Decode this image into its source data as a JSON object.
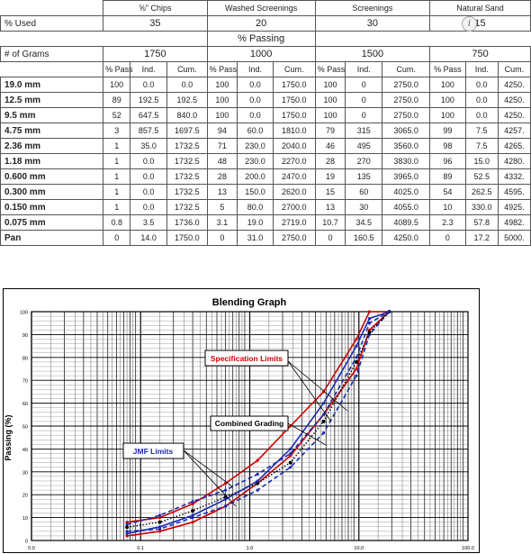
{
  "table": {
    "columns": [
      {
        "name": "⅝\" Chips",
        "used": "35",
        "grams": "1750"
      },
      {
        "name": "Washed Screenings",
        "used": "20",
        "grams": "1000"
      },
      {
        "name": "Screenings",
        "used": "30",
        "grams": "1500"
      },
      {
        "name": "Natural Sand",
        "used": "15",
        "grams": "750"
      }
    ],
    "used_label": "% Used",
    "passing_label": "% Passing",
    "grams_label": "# of Grams",
    "sub_headers": [
      "% Pass",
      "Ind.",
      "Cum."
    ],
    "rows": [
      {
        "size": "19.0 mm",
        "cells": [
          "100",
          "0.0",
          "0.0",
          "100",
          "0.0",
          "1750.0",
          "100",
          "0",
          "2750.0",
          "100",
          "0.0",
          "4250."
        ]
      },
      {
        "size": "12.5 mm",
        "cells": [
          "89",
          "192.5",
          "192.5",
          "100",
          "0.0",
          "1750.0",
          "100",
          "0",
          "2750.0",
          "100",
          "0.0",
          "4250."
        ]
      },
      {
        "size": "9.5 mm",
        "cells": [
          "52",
          "647.5",
          "840.0",
          "100",
          "0.0",
          "1750.0",
          "100",
          "0",
          "2750.0",
          "100",
          "0.0",
          "4250."
        ]
      },
      {
        "size": "4.75 mm",
        "cells": [
          "3",
          "857.5",
          "1697.5",
          "94",
          "60.0",
          "1810.0",
          "79",
          "315",
          "3065.0",
          "99",
          "7.5",
          "4257."
        ]
      },
      {
        "size": "2.36 mm",
        "cells": [
          "1",
          "35.0",
          "1732.5",
          "71",
          "230.0",
          "2040.0",
          "46",
          "495",
          "3560.0",
          "98",
          "7.5",
          "4265."
        ]
      },
      {
        "size": "1.18 mm",
        "cells": [
          "1",
          "0.0",
          "1732.5",
          "48",
          "230.0",
          "2270.0",
          "28",
          "270",
          "3830.0",
          "96",
          "15.0",
          "4280."
        ]
      },
      {
        "size": "0.600 mm",
        "cells": [
          "1",
          "0.0",
          "1732.5",
          "28",
          "200.0",
          "2470.0",
          "19",
          "135",
          "3965.0",
          "89",
          "52.5",
          "4332."
        ]
      },
      {
        "size": "0.300 mm",
        "cells": [
          "1",
          "0.0",
          "1732.5",
          "13",
          "150.0",
          "2620.0",
          "15",
          "60",
          "4025.0",
          "54",
          "262.5",
          "4595."
        ]
      },
      {
        "size": "0.150 mm",
        "cells": [
          "1",
          "0.0",
          "1732.5",
          "5",
          "80.0",
          "2700.0",
          "13",
          "30",
          "4055.0",
          "10",
          "330.0",
          "4925."
        ]
      },
      {
        "size": "0.075 mm",
        "cells": [
          "0.8",
          "3.5",
          "1736.0",
          "3.1",
          "19.0",
          "2719.0",
          "10.7",
          "34.5",
          "4089.5",
          "2.3",
          "57.8",
          "4982."
        ]
      },
      {
        "size": "Pan",
        "cells": [
          "0",
          "14.0",
          "1750.0",
          "0",
          "31.0",
          "2750.0",
          "0",
          "160.5",
          "4250.0",
          "0",
          "17.2",
          "5000."
        ]
      }
    ]
  },
  "chart_data": {
    "type": "line",
    "title": "Blending Graph",
    "xlabel": "",
    "ylabel": "Passing (%)",
    "x_scale": "log",
    "xlim": [
      0.01,
      100
    ],
    "ylim": [
      0,
      100
    ],
    "x_tick_labels": [
      "0.0",
      "0.1",
      "1.0",
      "10.0",
      "100.0"
    ],
    "y_ticks": [
      0,
      10,
      20,
      30,
      40,
      50,
      60,
      70,
      80,
      90,
      100
    ],
    "grid": true,
    "annotations": [
      {
        "text": "Specification Limits",
        "color": "#cc0000"
      },
      {
        "text": "Combined Grading",
        "color": "#000000"
      },
      {
        "text": "JMF Limits",
        "color": "#1a2bb0"
      }
    ],
    "sieves_mm": [
      0.075,
      0.15,
      0.3,
      0.6,
      1.18,
      2.36,
      4.75,
      9.5,
      12.5,
      19.0
    ],
    "series": [
      {
        "values": [
          8,
          10,
          16,
          25,
          35,
          50,
          65,
          88,
          100,
          100
        ],
        "color": "#cc0000",
        "style": "solid"
      },
      {
        "values": [
          2,
          4,
          8,
          15,
          25,
          37,
          55,
          75,
          92,
          100
        ],
        "color": "#cc0000",
        "style": "solid"
      },
      {
        "values": [
          7,
          11,
          17,
          22,
          29,
          38,
          55,
          80,
          95,
          100
        ],
        "color": "#1a2bb0",
        "style": "dashed"
      },
      {
        "values": [
          4,
          5,
          10,
          15,
          22,
          32,
          47,
          72,
          90,
          100
        ],
        "color": "#1a2bb0",
        "style": "dashed"
      },
      {
        "values": [
          5.8,
          8,
          13,
          19,
          25,
          34,
          52,
          78,
          91,
          100
        ],
        "color": "#000000",
        "style": "dotted"
      },
      {
        "values": [
          3,
          6,
          11,
          18,
          26,
          40,
          60,
          85,
          97,
          100
        ],
        "color": "#1a2bb0",
        "style": "solid"
      }
    ],
    "colors": {
      "spec": "#cc0000",
      "jmf": "#1a2bb0",
      "combined": "#000000",
      "blue_line": "#1a2bb0"
    }
  }
}
